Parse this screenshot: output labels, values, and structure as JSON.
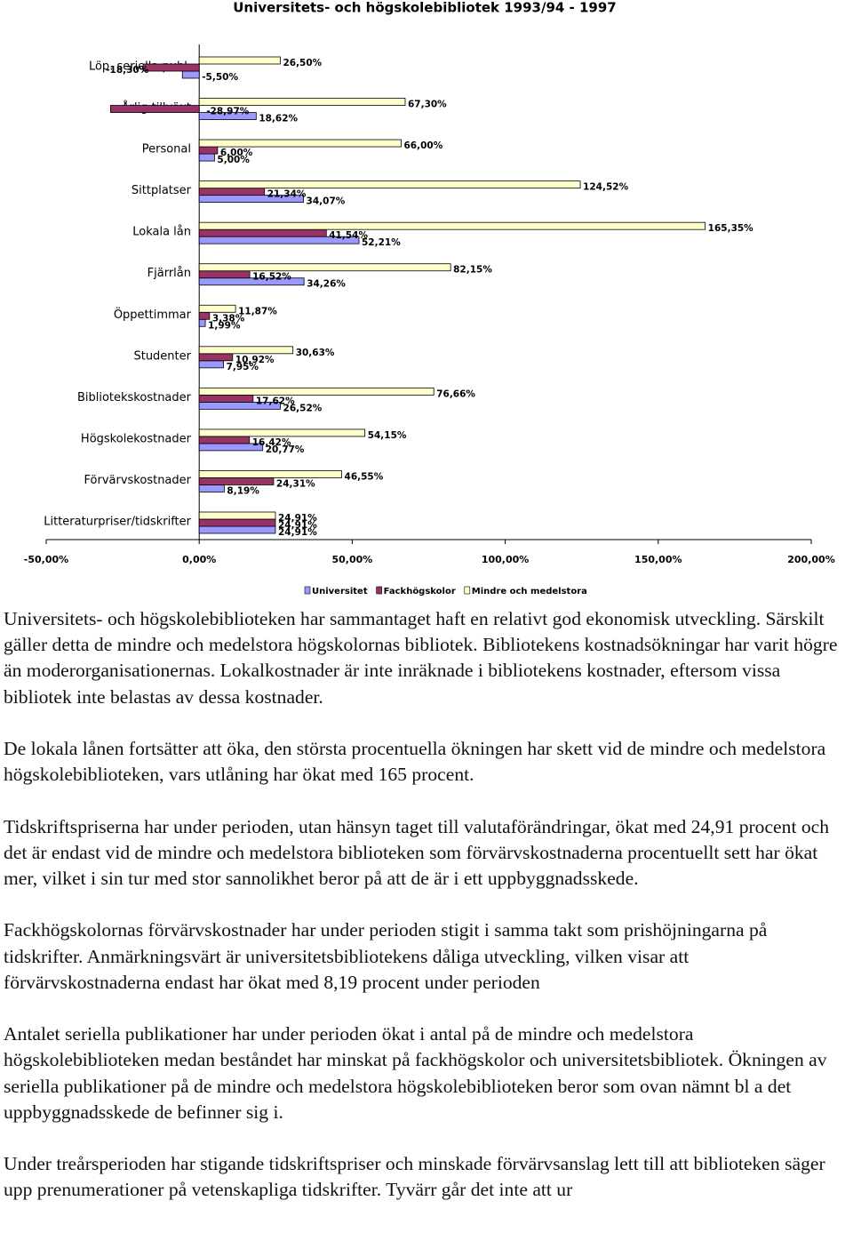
{
  "chart_data": {
    "type": "bar",
    "orientation": "horizontal",
    "title": "Universitets- och högskolebibliotek 1993/94 - 1997",
    "categories": [
      "Löp. seriella publ.",
      "Årlig tillväxt",
      "Personal",
      "Sittplatser",
      "Lokala lån",
      "Fjärrlån",
      "Öppettimmar",
      "Studenter",
      "Bibliotekskostnader",
      "Högskolekostnader",
      "Förvärvskostnader",
      "Litteraturpriser/tidskrifter"
    ],
    "series": [
      {
        "name": "Universitet",
        "color": "#9999ff",
        "values": [
          -5.5,
          18.62,
          5.0,
          34.07,
          52.21,
          34.26,
          1.99,
          7.95,
          26.52,
          20.77,
          8.19,
          24.91
        ],
        "value_labels": [
          "-5,50%",
          "18,62%",
          "5,00%",
          "34,07%",
          "52,21%",
          "34,26%",
          "1,99%",
          "7,95%",
          "26,52%",
          "20,77%",
          "8,19%",
          "24,91%"
        ]
      },
      {
        "name": "Fackhögskolor",
        "color": "#993366",
        "values": [
          -18.3,
          -28.97,
          6.0,
          21.34,
          41.54,
          16.52,
          3.38,
          10.92,
          17.62,
          16.42,
          24.31,
          24.91
        ],
        "value_labels": [
          "-18,30%",
          "-28,97%",
          "6,00%",
          "21,34%",
          "41,54%",
          "16,52%",
          "3,38%",
          "10,92%",
          "17,62%",
          "16,42%",
          "24,31%",
          "24,91%"
        ]
      },
      {
        "name": "Mindre och medelstora",
        "color": "#ffffcc",
        "values": [
          26.5,
          67.3,
          66.0,
          124.52,
          165.35,
          82.15,
          11.87,
          30.63,
          76.66,
          54.15,
          46.55,
          24.91
        ],
        "value_labels": [
          "26,50%",
          "67,30%",
          "66,00%",
          "124,52%",
          "165,35%",
          "82,15%",
          "11,87%",
          "30,63%",
          "76,66%",
          "54,15%",
          "46,55%",
          "24,91%"
        ]
      }
    ],
    "xlim": [
      -50,
      200
    ],
    "xticks": [
      {
        "value": -50,
        "label": "-50,00%"
      },
      {
        "value": 0,
        "label": "0,00%"
      },
      {
        "value": 50,
        "label": "50,00%"
      },
      {
        "value": 100,
        "label": "100,00%"
      },
      {
        "value": 150,
        "label": "150,00%"
      },
      {
        "value": 200,
        "label": "200,00%"
      }
    ],
    "legend": "bottom"
  },
  "paragraphs": [
    "Universitets- och högskolebiblioteken har sammantaget haft en relativt god ekonomisk utveckling. Särskilt gäller detta de mindre och medelstora högskolornas bibliotek. Bibliotekens kostnadsökningar har varit högre än moderorganisationernas. Lokalkostnader är inte inräknade i bibliotekens kostnader, eftersom vissa bibliotek inte belastas av dessa kostnader.",
    "De lokala lånen fortsätter att öka, den största procentuella ökningen har skett vid de mindre och medelstora högskolebiblioteken, vars utlåning har ökat med 165 procent.",
    "Tidskriftspriserna har under perioden, utan hänsyn taget till valutaförändringar, ökat med 24,91 procent och det är endast vid de mindre och medelstora biblioteken som förvärvskostnaderna procentuellt sett har ökat mer, vilket i sin tur med stor sannolikhet beror på att de är i ett uppbyggnadsskede.",
    "Fackhögskolornas förvärvskostnader har under perioden stigit i samma takt som prishöjningarna på tidskrifter. Anmärkningsvärt är universitetsbibliotekens dåliga utveckling, vilken visar att förvärvskostnaderna endast har ökat med 8,19 procent under perioden",
    "Antalet seriella publikationer har under perioden ökat i antal på de mindre och medelstora högskolebiblioteken medan beståndet har minskat på fackhögskolor och universitetsbibliotek. Ökningen av seriella publikationer på de mindre och medelstora högskolebiblioteken beror som ovan nämnt bl a det uppbyggnadsskede de befinner sig i.",
    "Under treårsperioden har stigande tidskriftspriser och minskade förvärvsanslag lett till att biblioteken säger upp prenumerationer på vetenskapliga tidskrifter. Tyvärr går det inte att ur"
  ]
}
